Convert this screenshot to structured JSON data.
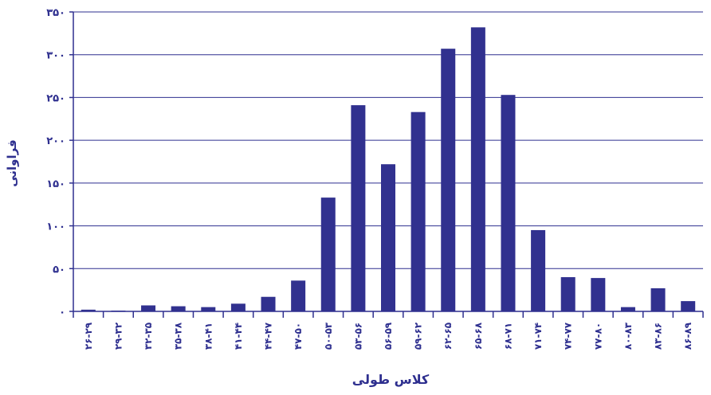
{
  "chart_data": {
    "type": "bar",
    "xlabel": "کلاس طولی",
    "ylabel": "فراوانی",
    "ylim": [
      0,
      350
    ],
    "yticks": [
      0,
      50,
      100,
      150,
      200,
      250,
      300,
      350
    ],
    "ytick_labels": [
      "۰",
      "۵۰",
      "۱۰۰",
      "۱۵۰",
      "۲۰۰",
      "۲۵۰",
      "۳۰۰",
      "۳۵۰"
    ],
    "grid": true,
    "categories": [
      "۲۶-۲۹",
      "۲۹-۳۲",
      "۳۲-۳۵",
      "۳۵-۳۸",
      "۳۸-۴۱",
      "۴۱-۴۴",
      "۴۴-۴۷",
      "۴۷-۵۰",
      "۵۰-۵۳",
      "۵۳-۵۶",
      "۵۶-۵۹",
      "۵۹-۶۲",
      "۶۲-۶۵",
      "۶۵-۶۸",
      "۶۸-۷۱",
      "۷۱-۷۴",
      "۷۴-۷۷",
      "۷۷-۸۰",
      "۸۰-۸۳",
      "۸۳-۸۶",
      "۸۶-۸۹"
    ],
    "values": [
      2,
      0,
      7,
      6,
      5,
      9,
      17,
      36,
      133,
      241,
      172,
      233,
      307,
      332,
      253,
      95,
      40,
      39,
      5,
      27,
      12
    ],
    "bar_color": "#31318f",
    "axis_color": "#2e2f8f"
  }
}
